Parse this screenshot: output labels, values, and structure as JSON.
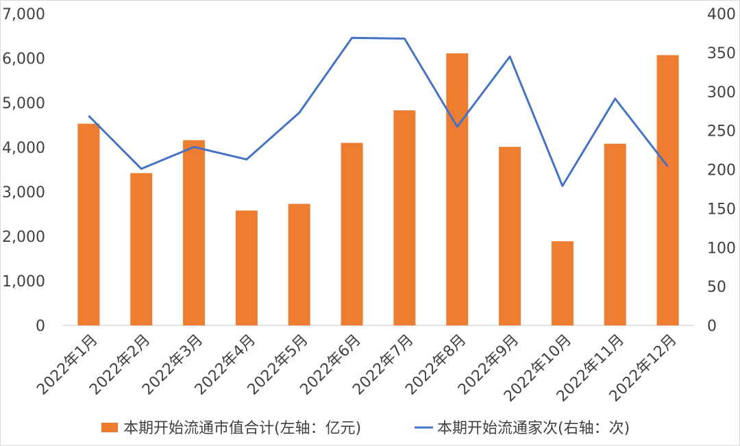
{
  "chart_data": {
    "type": "bar+line",
    "categories": [
      "2022年1月",
      "2022年2月",
      "2022年3月",
      "2022年4月",
      "2022年5月",
      "2022年6月",
      "2022年7月",
      "2022年8月",
      "2022年9月",
      "2022年10月",
      "2022年11月",
      "2022年12月"
    ],
    "series": [
      {
        "name": "本期开始流通市值合计(左轴：亿元)",
        "type": "bar",
        "axis": "left",
        "color": "#ED7D31",
        "values": [
          4530,
          3420,
          4160,
          2580,
          2730,
          4100,
          4830,
          6110,
          4010,
          1890,
          4080,
          6070
        ]
      },
      {
        "name": "本期开始流通家次(右轴：次)",
        "type": "line",
        "axis": "right",
        "color": "#4472C4",
        "values": [
          269,
          201,
          229,
          213,
          273,
          369,
          368,
          255,
          345,
          179,
          291,
          204
        ]
      }
    ],
    "left_axis": {
      "min": 0,
      "max": 7000,
      "ticks": [
        "0",
        "1,000",
        "2,000",
        "3,000",
        "4,000",
        "5,000",
        "6,000",
        "7,000"
      ]
    },
    "right_axis": {
      "min": 0,
      "max": 400,
      "ticks": [
        "0",
        "50",
        "100",
        "150",
        "200",
        "250",
        "300",
        "350",
        "400"
      ]
    },
    "grid": false,
    "legend_position": "bottom"
  }
}
